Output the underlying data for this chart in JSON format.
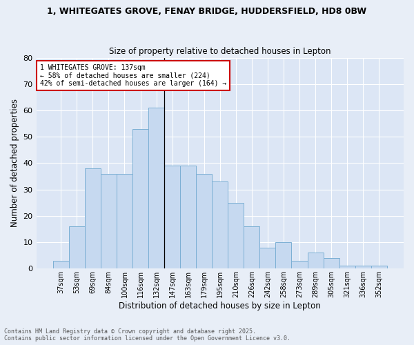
{
  "title1": "1, WHITEGATES GROVE, FENAY BRIDGE, HUDDERSFIELD, HD8 0BW",
  "title2": "Size of property relative to detached houses in Lepton",
  "xlabel": "Distribution of detached houses by size in Lepton",
  "ylabel": "Number of detached properties",
  "categories": [
    "37sqm",
    "53sqm",
    "69sqm",
    "84sqm",
    "100sqm",
    "116sqm",
    "132sqm",
    "147sqm",
    "163sqm",
    "179sqm",
    "195sqm",
    "210sqm",
    "226sqm",
    "242sqm",
    "258sqm",
    "273sqm",
    "289sqm",
    "305sqm",
    "321sqm",
    "336sqm",
    "352sqm"
  ],
  "values": [
    3,
    16,
    38,
    36,
    36,
    53,
    61,
    39,
    39,
    36,
    33,
    25,
    16,
    8,
    10,
    3,
    6,
    4,
    1,
    1,
    1
  ],
  "bar_color": "#c6d9f0",
  "bar_edge_color": "#7bafd4",
  "annotation_title": "1 WHITEGATES GROVE: 137sqm",
  "annotation_line1": "← 58% of detached houses are smaller (224)",
  "annotation_line2": "42% of semi-detached houses are larger (164) →",
  "annotation_box_color": "#ffffff",
  "annotation_border_color": "#cc0000",
  "vline_x": 6.5,
  "ylim": [
    0,
    80
  ],
  "yticks": [
    0,
    10,
    20,
    30,
    40,
    50,
    60,
    70,
    80
  ],
  "footer1": "Contains HM Land Registry data © Crown copyright and database right 2025.",
  "footer2": "Contains public sector information licensed under the Open Government Licence v3.0.",
  "bg_color": "#e8eef7",
  "plot_bg_color": "#dce6f5"
}
